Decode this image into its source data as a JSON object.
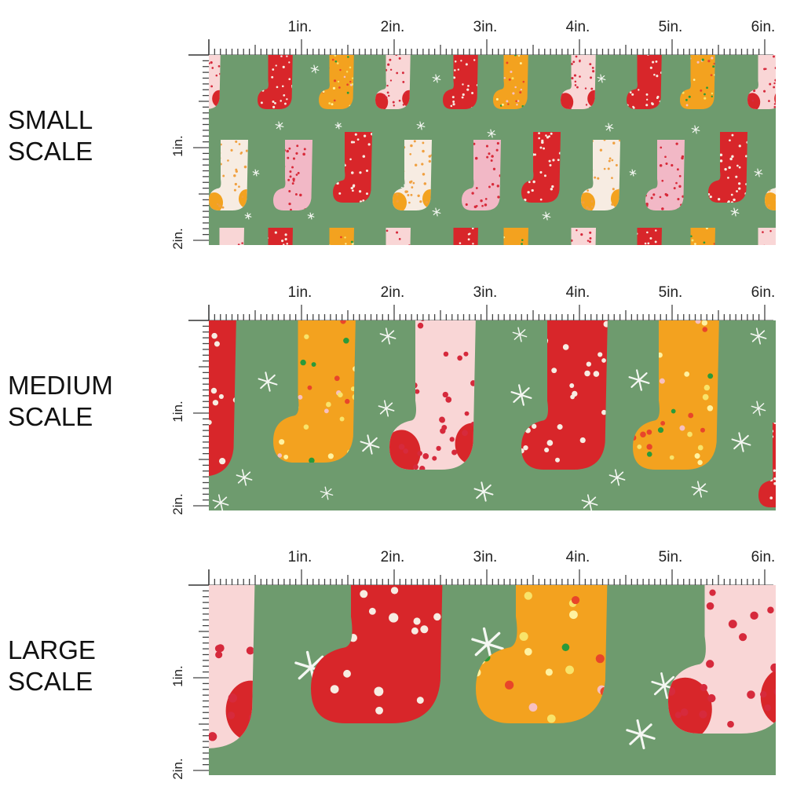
{
  "panels": [
    {
      "label1": "SMALL",
      "label2": "SCALE",
      "scale": 1
    },
    {
      "label1": "MEDIUM",
      "label2": "SCALE",
      "scale": 2.4
    },
    {
      "label1": "LARGE",
      "label2": "SCALE",
      "scale": 3.6
    }
  ],
  "ruler": {
    "h_labels": [
      "1in.",
      "2in.",
      "3in.",
      "4in.",
      "5in.",
      "6in."
    ],
    "v_labels": [
      "1in.",
      "2in."
    ],
    "ticks_per_inch": 16
  },
  "colors": {
    "background": "#6e9b6e",
    "red": "#d8262a",
    "orange": "#f3a21f",
    "pink": "#f9d6d6",
    "light_pink": "#f2b8c6",
    "cream": "#f7ece2",
    "snow": "#f4f7f2"
  }
}
